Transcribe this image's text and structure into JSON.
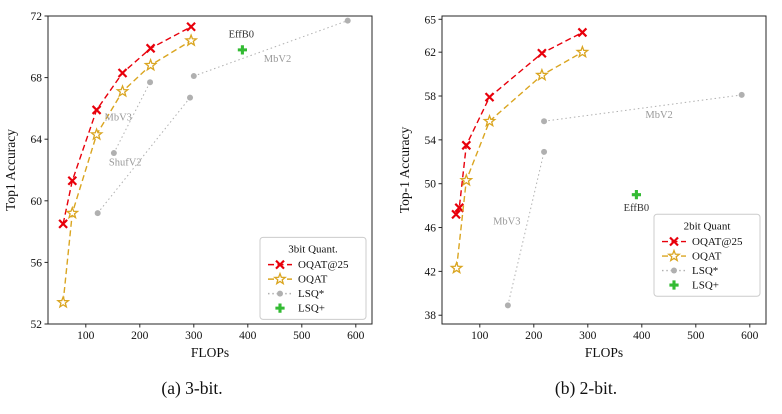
{
  "captions": {
    "a": "(a) 3-bit.",
    "b": "(b) 2-bit."
  },
  "chart_data": [
    {
      "id": "chart-a",
      "type": "line",
      "title": "",
      "xlabel": "FLOPs",
      "ylabel": "Top1 Accuracy",
      "xlim": [
        30,
        630
      ],
      "ylim": [
        52,
        72
      ],
      "xticks": [
        100,
        200,
        300,
        400,
        500,
        600
      ],
      "yticks": [
        52,
        56,
        60,
        64,
        68,
        72
      ],
      "legend": {
        "title": "3bit Quant.",
        "position": "lower right",
        "bottom_frac": 0.015
      },
      "series": [
        {
          "name": "OQAT@25",
          "color": "#e8000b",
          "style": "dashed",
          "marker": "x",
          "points": [
            [
              58,
              58.5
            ],
            [
              75,
              61.3
            ],
            [
              120,
              65.9
            ],
            [
              168,
              68.3
            ],
            [
              220,
              69.9
            ],
            [
              295,
              71.3
            ]
          ]
        },
        {
          "name": "OQAT",
          "color": "#daa520",
          "style": "dashed",
          "marker": "star",
          "points": [
            [
              58,
              53.4
            ],
            [
              75,
              59.2
            ],
            [
              120,
              64.3
            ],
            [
              168,
              67.1
            ],
            [
              220,
              68.8
            ],
            [
              295,
              70.4
            ]
          ]
        },
        {
          "name": "LSQ*",
          "color": "#b0b0b0",
          "style": "dotted",
          "marker": "circle",
          "segments": [
            [
              [
                122,
                59.2
              ],
              [
                293,
                66.7
              ]
            ],
            [
              [
                152,
                63.1
              ],
              [
                219,
                67.7
              ]
            ],
            [
              [
                300,
                68.1
              ],
              [
                585,
                71.7
              ]
            ]
          ]
        },
        {
          "name": "LSQ+",
          "color": "#33bb33",
          "style": "none",
          "marker": "plus",
          "points": [
            [
              390,
              69.8
            ]
          ]
        }
      ],
      "annotations": [
        {
          "text": "EffB0",
          "x": 388,
          "y": 70.6,
          "color": "#333333"
        },
        {
          "text": "MbV2",
          "x": 455,
          "y": 69.0,
          "color": "#999999"
        },
        {
          "text": "MbV3",
          "x": 160,
          "y": 65.2,
          "color": "#999999"
        },
        {
          "text": "ShufV2",
          "x": 173,
          "y": 62.3,
          "color": "#999999"
        }
      ]
    },
    {
      "id": "chart-b",
      "type": "line",
      "title": "",
      "xlabel": "FLOPs",
      "ylabel": "Top-1 Accuracy",
      "xlim": [
        30,
        630
      ],
      "ylim": [
        37.2,
        65.3
      ],
      "xticks": [
        100,
        200,
        300,
        400,
        500,
        600
      ],
      "yticks": [
        38,
        42,
        46,
        50,
        54,
        58,
        62,
        65
      ],
      "legend": {
        "title": "2bit Quant",
        "position": "lower right",
        "bottom_frac": 0.09
      },
      "series": [
        {
          "name": "OQAT@25",
          "color": "#e8000b",
          "style": "dashed",
          "marker": "x",
          "points": [
            [
              56,
              47.2
            ],
            [
              62,
              47.8
            ],
            [
              75,
              53.5
            ],
            [
              118,
              57.9
            ],
            [
              215,
              61.9
            ],
            [
              290,
              63.8
            ]
          ]
        },
        {
          "name": "OQAT",
          "color": "#daa520",
          "style": "dashed",
          "marker": "star",
          "points": [
            [
              57,
              42.3
            ],
            [
              75,
              50.3
            ],
            [
              118,
              55.7
            ],
            [
              215,
              59.9
            ],
            [
              290,
              62.0
            ]
          ]
        },
        {
          "name": "LSQ*",
          "color": "#b0b0b0",
          "style": "dotted",
          "marker": "circle",
          "segments": [
            [
              [
                152,
                38.9
              ],
              [
                219,
                52.9
              ]
            ],
            [
              [
                219,
                55.7
              ],
              [
                585,
                58.1
              ]
            ]
          ]
        },
        {
          "name": "LSQ+",
          "color": "#33bb33",
          "style": "none",
          "marker": "plus",
          "points": [
            [
              390,
              49.0
            ]
          ]
        }
      ],
      "annotations": [
        {
          "text": "MbV3",
          "x": 150,
          "y": 46.3,
          "color": "#999999"
        },
        {
          "text": "MbV2",
          "x": 432,
          "y": 56.0,
          "color": "#999999"
        },
        {
          "text": "EffB0",
          "x": 390,
          "y": 47.5,
          "color": "#333333"
        }
      ]
    }
  ]
}
